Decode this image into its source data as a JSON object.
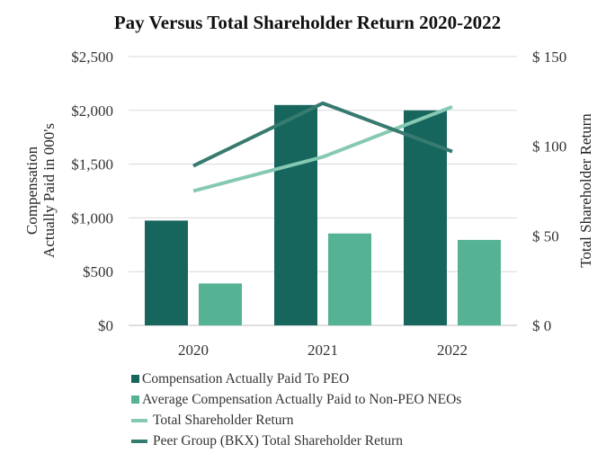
{
  "chart_data": {
    "type": "bar+line",
    "title": "Pay Versus Total Shareholder Return 2020-2022",
    "categories": [
      "2020",
      "2021",
      "2022"
    ],
    "left_axis": {
      "label_line1": "Compensation",
      "label_line2": "Actually Paid in 000's",
      "range": [
        0,
        2500
      ],
      "ticks": [
        0,
        500,
        1000,
        1500,
        2000,
        2500
      ],
      "tick_labels": [
        "$0",
        "$500",
        "$1,000",
        "$1,500",
        "$2,000",
        "$2,500"
      ]
    },
    "right_axis": {
      "label": "Total Shareholder Return",
      "range": [
        0,
        150
      ],
      "ticks": [
        0,
        50,
        100,
        150
      ],
      "tick_labels": [
        "$ 0",
        "$ 50",
        "$ 100",
        "$ 150"
      ]
    },
    "bar_series": [
      {
        "name": "Compensation Actually Paid To PEO",
        "color": "#17665e",
        "values": [
          975,
          2050,
          2000
        ]
      },
      {
        "name": "Average Compensation Actually Paid to Non-PEO NEOs",
        "color": "#55b294",
        "values": [
          390,
          855,
          795
        ]
      }
    ],
    "line_series": [
      {
        "name": "Total Shareholder Return",
        "color": "#86c9b2",
        "values": [
          75,
          94,
          122
        ]
      },
      {
        "name": "Peer Group (BKX) Total Shareholder Return",
        "color": "#377a70",
        "values": [
          89,
          124,
          97
        ]
      }
    ],
    "grid": true,
    "legend_position": "bottom-left"
  }
}
